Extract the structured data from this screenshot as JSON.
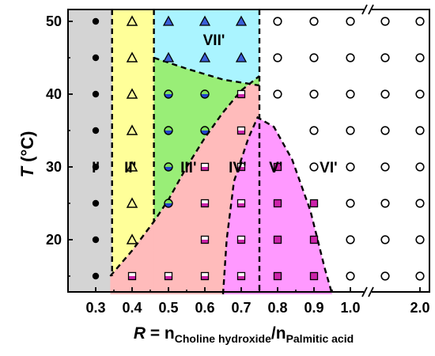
{
  "chart_data": {
    "type": "scatter",
    "title": "",
    "ylabel": {
      "var": "T",
      "unit": " (°C)"
    },
    "xlabel": {
      "var": "R",
      "eq": " = n",
      "sub1": "Choline hydroxide",
      "slash": "/n",
      "sub2": "Palmitic acid"
    },
    "ylim": [
      12.5,
      52.5
    ],
    "x_ticks": [
      "0.3",
      "0.4",
      "0.5",
      "0.6",
      "0.7",
      "0.8",
      "0.9",
      "1.0",
      "2.0"
    ],
    "y_ticks": [
      "20",
      "30",
      "40",
      "50"
    ],
    "axis_break": "x between 1.0 and 2.0",
    "regions": [
      {
        "label": "I'",
        "color": "#d4d4d4"
      },
      {
        "label": "II'",
        "color": "#ffff99"
      },
      {
        "label": "III'",
        "color": "#99ee77"
      },
      {
        "label": "IV'",
        "color": "#ffbbbb"
      },
      {
        "label": "V'",
        "color": "#ff99ff"
      },
      {
        "label": "VI'",
        "color": "#ffffff"
      },
      {
        "label": "VII'",
        "color": "#aaf4ff"
      }
    ],
    "series": [
      {
        "marker": "filled-circle",
        "points": [
          [
            0.3,
            15
          ],
          [
            0.3,
            20
          ],
          [
            0.3,
            25
          ],
          [
            0.3,
            30
          ],
          [
            0.3,
            35
          ],
          [
            0.3,
            40
          ],
          [
            0.3,
            45
          ],
          [
            0.3,
            50
          ]
        ]
      },
      {
        "marker": "open-triangle",
        "points": [
          [
            0.4,
            20
          ],
          [
            0.4,
            25
          ],
          [
            0.4,
            30
          ],
          [
            0.4,
            35
          ],
          [
            0.4,
            40
          ],
          [
            0.4,
            45
          ],
          [
            0.4,
            50
          ]
        ]
      },
      {
        "marker": "blue-triangle",
        "points": [
          [
            0.5,
            45
          ],
          [
            0.5,
            50
          ],
          [
            0.6,
            45
          ],
          [
            0.6,
            50
          ],
          [
            0.7,
            45
          ],
          [
            0.7,
            50
          ]
        ]
      },
      {
        "marker": "half-circle",
        "points": [
          [
            0.5,
            25
          ],
          [
            0.5,
            30
          ],
          [
            0.5,
            35
          ],
          [
            0.5,
            40
          ],
          [
            0.6,
            35
          ],
          [
            0.6,
            40
          ]
        ]
      },
      {
        "marker": "half-square",
        "points": [
          [
            0.4,
            15
          ],
          [
            0.5,
            15
          ],
          [
            0.6,
            15
          ],
          [
            0.6,
            20
          ],
          [
            0.6,
            25
          ],
          [
            0.6,
            30
          ],
          [
            0.7,
            15
          ],
          [
            0.7,
            20
          ],
          [
            0.7,
            25
          ],
          [
            0.7,
            30
          ],
          [
            0.7,
            35
          ],
          [
            0.7,
            40
          ]
        ]
      },
      {
        "marker": "filled-square",
        "points": [
          [
            0.8,
            15
          ],
          [
            0.8,
            20
          ],
          [
            0.8,
            25
          ],
          [
            0.8,
            30
          ],
          [
            0.9,
            15
          ],
          [
            0.9,
            20
          ],
          [
            0.9,
            25
          ]
        ]
      },
      {
        "marker": "open-circle",
        "points": [
          [
            0.8,
            40
          ],
          [
            0.8,
            45
          ],
          [
            0.8,
            50
          ],
          [
            0.9,
            30
          ],
          [
            0.9,
            35
          ],
          [
            0.9,
            40
          ],
          [
            0.9,
            45
          ],
          [
            0.9,
            50
          ],
          [
            1.0,
            15
          ],
          [
            1.0,
            20
          ],
          [
            1.0,
            25
          ],
          [
            1.0,
            30
          ],
          [
            1.0,
            35
          ],
          [
            1.0,
            40
          ],
          [
            1.0,
            45
          ],
          [
            1.0,
            50
          ],
          [
            1.5,
            15
          ],
          [
            1.5,
            20
          ],
          [
            1.5,
            25
          ],
          [
            1.5,
            30
          ],
          [
            1.5,
            35
          ],
          [
            1.5,
            40
          ],
          [
            1.5,
            45
          ],
          [
            1.5,
            50
          ],
          [
            2.0,
            15
          ],
          [
            2.0,
            20
          ],
          [
            2.0,
            25
          ],
          [
            2.0,
            30
          ],
          [
            2.0,
            35
          ],
          [
            2.0,
            40
          ],
          [
            2.0,
            45
          ],
          [
            2.0,
            50
          ]
        ]
      }
    ]
  }
}
